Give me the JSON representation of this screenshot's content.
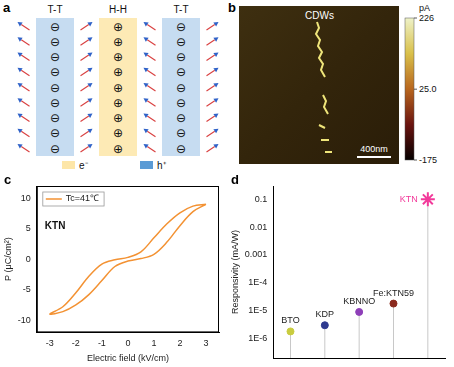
{
  "panel_a": {
    "label": "a",
    "rows": 9,
    "walls": [
      {
        "label": "T-T",
        "charge": "⊖",
        "color": "#bcd6ef"
      },
      {
        "label": "H-H",
        "charge": "⊕",
        "color": "#fde6a8"
      },
      {
        "label": "T-T",
        "charge": "⊖",
        "color": "#bcd6ef"
      }
    ],
    "legend": [
      {
        "label": "e⁻",
        "color": "#fde6a8"
      },
      {
        "label": "h⁺",
        "color": "#5b9bd5"
      }
    ]
  },
  "panel_b": {
    "label": "b",
    "annotation": "CDWs",
    "scale_bar": "400nm",
    "colorbar": {
      "unit": "pA",
      "range": [
        -175,
        226
      ],
      "ticks": [
        226,
        {
          "value": 25,
          "label": "25.0"
        },
        -175
      ]
    }
  },
  "chart_data": [
    {
      "panel_label": "c",
      "type": "line",
      "x_label": "Electric field (kV/cm)",
      "y_label": "P (μC/cm²)",
      "annotations": [
        "KTN"
      ],
      "legend": "upper left",
      "grid": false,
      "xlim": [
        -3.5,
        3.5
      ],
      "ylim": [
        -12,
        12
      ],
      "xticks": [
        -3,
        -2,
        -1,
        0,
        1,
        2,
        3
      ],
      "yticks": [
        -10,
        -5,
        0,
        5,
        10
      ],
      "x": [
        3,
        2.5,
        2,
        1.5,
        1,
        0.5,
        0,
        -0.5,
        -1,
        -1.5,
        -2,
        -2.5,
        -3,
        -2.5,
        -2,
        -1.5,
        -1,
        -0.5,
        0,
        0.5,
        1,
        1.5,
        2,
        2.5,
        3
      ],
      "series": [
        {
          "name": "Tc=41℃",
          "color": "#f39233",
          "marker": "none",
          "line_style": "solid",
          "values": [
            9,
            8.7,
            7.6,
            5.8,
            3.5,
            1.2,
            0.3,
            -0.1,
            -0.8,
            -2.8,
            -5.5,
            -7.8,
            -9,
            -8.6,
            -7.5,
            -5.8,
            -3.5,
            -1.2,
            -0.3,
            0.1,
            0.8,
            2.8,
            5.5,
            7.8,
            9
          ]
        }
      ]
    },
    {
      "panel_label": "d",
      "type": "scatter",
      "y_label": "Responsivity (mA/W)",
      "log": "y",
      "grid": false,
      "tick_labels": "y",
      "categories": [
        "BTO",
        "KDP",
        "KBNNO",
        "Fe:KTN59",
        "KTN"
      ],
      "ylim": [
        2e-07,
        0.3
      ],
      "yticks": [
        {
          "value": 1e-06,
          "label": "1E-6"
        },
        {
          "value": 1e-05,
          "label": "1E-5"
        },
        {
          "value": 0.0001,
          "label": "1E-4"
        },
        0.001,
        0.01,
        0.1
      ],
      "series": [
        {
          "name": "BTO",
          "color": "#c9cc3f",
          "marker": "circle",
          "values": [
            1.8e-06,
            null,
            null,
            null,
            null
          ]
        },
        {
          "name": "KDP",
          "color": "#2f3a8f",
          "marker": "circle",
          "values": [
            null,
            3e-06,
            null,
            null,
            null
          ]
        },
        {
          "name": "KBNNO",
          "color": "#8e3fb8",
          "marker": "circle",
          "values": [
            null,
            null,
            9e-06,
            null,
            null
          ]
        },
        {
          "name": "Fe:KTN59",
          "color": "#8b2a1e",
          "marker": "circle",
          "values": [
            null,
            null,
            null,
            1.8e-05,
            null
          ]
        },
        {
          "name": "KTN",
          "color": "#f2399a",
          "marker": "star",
          "values": [
            null,
            null,
            null,
            null,
            0.1
          ]
        }
      ]
    }
  ]
}
